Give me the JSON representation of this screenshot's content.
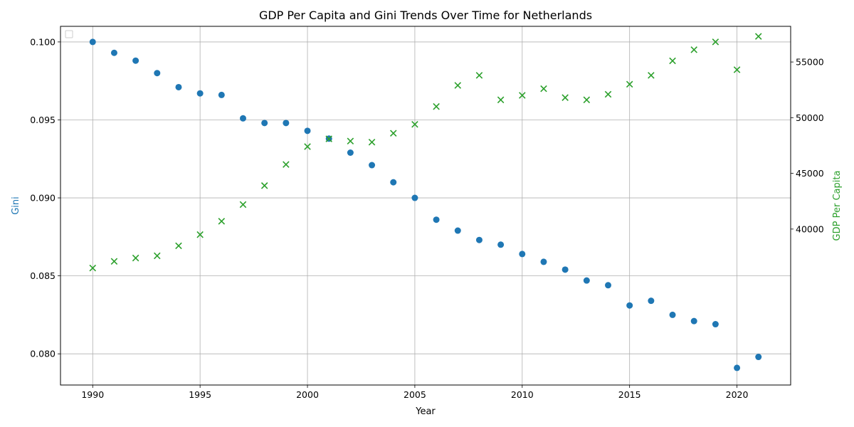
{
  "chart_data": {
    "type": "scatter",
    "title": "GDP Per Capita and Gini Trends Over Time for Netherlands",
    "xlabel": "Year",
    "ylabel_left": "Gini",
    "ylabel_right": "GDP Per Capita",
    "xlim": [
      1988.5,
      2022.5
    ],
    "ylim_left": [
      0.078,
      0.101
    ],
    "ylim_right": [
      26000,
      58200
    ],
    "x_ticks": [
      1990,
      1995,
      2000,
      2005,
      2010,
      2015,
      2020
    ],
    "y_ticks_left": [
      0.08,
      0.085,
      0.09,
      0.095,
      0.1
    ],
    "y_ticks_right": [
      40000,
      45000,
      50000,
      55000
    ],
    "grid": true,
    "legend": "upper-left (empty)",
    "colors": {
      "gini": "#1f77b4",
      "gdp": "#2ca02c"
    },
    "x": [
      1990,
      1991,
      1992,
      1993,
      1994,
      1995,
      1996,
      1997,
      1998,
      1999,
      2000,
      2001,
      2002,
      2003,
      2004,
      2005,
      2006,
      2007,
      2008,
      2009,
      2010,
      2011,
      2012,
      2013,
      2014,
      2015,
      2016,
      2017,
      2018,
      2019,
      2020,
      2021
    ],
    "series": [
      {
        "axis": "left",
        "marker": "circle",
        "values": [
          0.1,
          0.0993,
          0.0988,
          0.098,
          0.0971,
          0.0967,
          0.0966,
          0.0951,
          0.0948,
          0.0948,
          0.0943,
          0.0938,
          0.0929,
          0.0921,
          0.091,
          0.09,
          0.0886,
          0.0879,
          0.0873,
          0.087,
          0.0864,
          0.0859,
          0.0854,
          0.0847,
          0.0844,
          0.0831,
          0.0834,
          0.0825,
          0.0821,
          0.0819,
          0.0791,
          0.0798
        ]
      },
      {
        "axis": "right",
        "marker": "x",
        "values": [
          36500,
          37100,
          37400,
          37600,
          38500,
          39500,
          40700,
          42200,
          43900,
          45800,
          47400,
          48100,
          47900,
          47800,
          48600,
          49400,
          51000,
          52900,
          53800,
          51600,
          52000,
          52600,
          51800,
          51600,
          52100,
          53000,
          53800,
          55100,
          56100,
          56800,
          54300,
          57300
        ]
      }
    ]
  }
}
